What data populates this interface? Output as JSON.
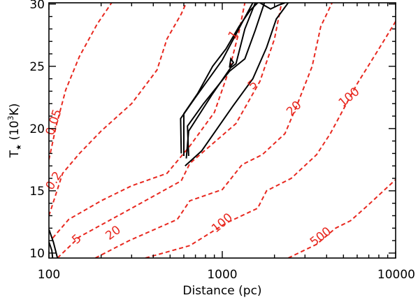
{
  "chart_data": {
    "type": "contour",
    "xlabel": "Distance (pc)",
    "ylabel": {
      "prefix": "T",
      "subscript": "★",
      "unit_open": " (10",
      "unit_exp": "3",
      "unit_close": "K)"
    },
    "x_scale": "log",
    "xlim": [
      100,
      10000
    ],
    "ylim": [
      9.6,
      30.1
    ],
    "x_ticks": [
      {
        "value": 100,
        "label": "100"
      },
      {
        "value": 1000,
        "label": "1000"
      },
      {
        "value": 10000,
        "label": "10000"
      }
    ],
    "y_ticks": [
      {
        "value": 10,
        "label": "10"
      },
      {
        "value": 15,
        "label": "15"
      },
      {
        "value": 20,
        "label": "20"
      },
      {
        "value": 25,
        "label": "25"
      },
      {
        "value": 30,
        "label": "30"
      }
    ],
    "colors": {
      "red_contours": "#e8281f",
      "black_contours": "#000000"
    },
    "red_contours": [
      {
        "label": "0.05",
        "label_at": [
          107,
          20.5
        ],
        "label_rotate": -72,
        "points": [
          [
            100,
            17.5
          ],
          [
            110,
            20.2
          ],
          [
            125,
            23.1
          ],
          [
            150,
            25.8
          ],
          [
            190,
            28.4
          ],
          [
            230,
            30.1
          ]
        ]
      },
      {
        "label": "0.2",
        "label_at": [
          107,
          15.8
        ],
        "label_rotate": -58,
        "points": [
          [
            100,
            13.0
          ],
          [
            120,
            16.4
          ],
          [
            150,
            18.0
          ],
          [
            200,
            19.8
          ],
          [
            300,
            22.0
          ],
          [
            420,
            24.7
          ],
          [
            480,
            27.2
          ],
          [
            580,
            29.2
          ],
          [
            620,
            30.1
          ]
        ]
      },
      {
        "label": "1",
        "label_at": [
          1160,
          27.5
        ],
        "label_rotate": -55,
        "points": [
          [
            105,
            11.2
          ],
          [
            130,
            12.7
          ],
          [
            200,
            14.2
          ],
          [
            300,
            15.4
          ],
          [
            480,
            16.4
          ],
          [
            650,
            18.6
          ],
          [
            900,
            21.3
          ],
          [
            1100,
            24.8
          ],
          [
            1250,
            27.8
          ],
          [
            1350,
            30.1
          ]
        ]
      },
      {
        "label": "5",
        "label_at": [
          1500,
          23.5
        ],
        "label_rotate": -45,
        "points": [
          [
            112,
            9.6
          ],
          [
            150,
            11.3
          ],
          [
            300,
            13.6
          ],
          [
            580,
            15.8
          ],
          [
            650,
            17.2
          ],
          [
            900,
            18.9
          ],
          [
            1200,
            20.4
          ],
          [
            1650,
            23.8
          ],
          [
            2000,
            27.2
          ],
          [
            2200,
            30.1
          ]
        ]
      },
      {
        "label": "20",
        "label_at": [
          2600,
          21.6
        ],
        "label_rotate": -45,
        "points": [
          [
            185,
            9.6
          ],
          [
            290,
            11.0
          ],
          [
            550,
            12.7
          ],
          [
            650,
            14.2
          ],
          [
            1000,
            15.1
          ],
          [
            1300,
            17.1
          ],
          [
            1700,
            17.9
          ],
          [
            2300,
            19.6
          ],
          [
            2700,
            21.9
          ],
          [
            3300,
            25.0
          ],
          [
            3700,
            28.2
          ],
          [
            4300,
            30.1
          ]
        ]
      },
      {
        "label": "100",
        "label_at": [
          5400,
          22.5
        ],
        "label_rotate": -40,
        "points": [
          [
            360,
            9.6
          ],
          [
            650,
            10.6
          ],
          [
            1050,
            12.4
          ],
          [
            1600,
            13.6
          ],
          [
            1800,
            15.0
          ],
          [
            2500,
            16.0
          ],
          [
            3500,
            17.9
          ],
          [
            4200,
            19.6
          ],
          [
            6000,
            23.6
          ],
          [
            8000,
            26.4
          ],
          [
            10000,
            28.6
          ]
        ]
      },
      {
        "label": "5",
        "label_at": [
          145,
          11.1
        ],
        "label_rotate": -42,
        "points": []
      },
      {
        "label": "20",
        "label_at": [
          235,
          11.6
        ],
        "label_rotate": -36,
        "points": []
      },
      {
        "label": "100",
        "label_at": [
          1000,
          12.4
        ],
        "label_rotate": -40,
        "points": []
      },
      {
        "label": "500",
        "label_at": [
          3700,
          11.3
        ],
        "label_rotate": -38,
        "points": [
          [
            2400,
            9.6
          ],
          [
            3500,
            10.7
          ],
          [
            4500,
            12.0
          ],
          [
            5500,
            12.6
          ],
          [
            7000,
            13.9
          ],
          [
            10000,
            15.9
          ]
        ]
      }
    ],
    "black_contours": [
      {
        "points": [
          [
            600,
            17.8
          ],
          [
            600,
            21.2
          ],
          [
            720,
            22.8
          ],
          [
            880,
            25.0
          ],
          [
            1050,
            26.4
          ],
          [
            1250,
            28.2
          ],
          [
            1450,
            29.5
          ],
          [
            1600,
            30.1
          ]
        ]
      },
      {
        "points": [
          [
            620,
            17.6
          ],
          [
            640,
            19.8
          ],
          [
            880,
            22.8
          ],
          [
            1120,
            24.9
          ],
          [
            1200,
            25.2
          ],
          [
            1350,
            28.0
          ],
          [
            1550,
            30.1
          ]
        ]
      },
      {
        "points": [
          [
            640,
            17.8
          ],
          [
            630,
            20.2
          ],
          [
            780,
            22.0
          ],
          [
            1100,
            24.6
          ],
          [
            1350,
            25.6
          ],
          [
            1550,
            27.9
          ],
          [
            1750,
            30.1
          ]
        ]
      },
      {
        "points": [
          [
            580,
            18.0
          ],
          [
            575,
            20.8
          ],
          [
            700,
            22.5
          ],
          [
            1000,
            25.5
          ],
          [
            1300,
            28.5
          ],
          [
            1500,
            30.1
          ]
        ]
      },
      {
        "points": [
          [
            610,
            17.0
          ],
          [
            760,
            18.2
          ],
          [
            1150,
            21.8
          ],
          [
            1500,
            24.0
          ],
          [
            1800,
            26.5
          ],
          [
            2050,
            28.8
          ],
          [
            2400,
            30.1
          ]
        ]
      },
      {
        "points": [
          [
            1100,
            24.9
          ],
          [
            1160,
            25.3
          ],
          [
            1120,
            25.6
          ],
          [
            1100,
            24.9
          ]
        ]
      },
      {
        "points": [
          [
            1650,
            30.1
          ],
          [
            1900,
            29.6
          ],
          [
            2100,
            29.9
          ],
          [
            2300,
            30.1
          ]
        ]
      },
      {
        "points": [
          [
            100,
            11.9
          ],
          [
            106,
            10.9
          ],
          [
            112,
            9.6
          ]
        ]
      },
      {
        "points": [
          [
            100,
            10.9
          ],
          [
            104,
            10.2
          ],
          [
            105,
            9.6
          ]
        ]
      }
    ]
  }
}
